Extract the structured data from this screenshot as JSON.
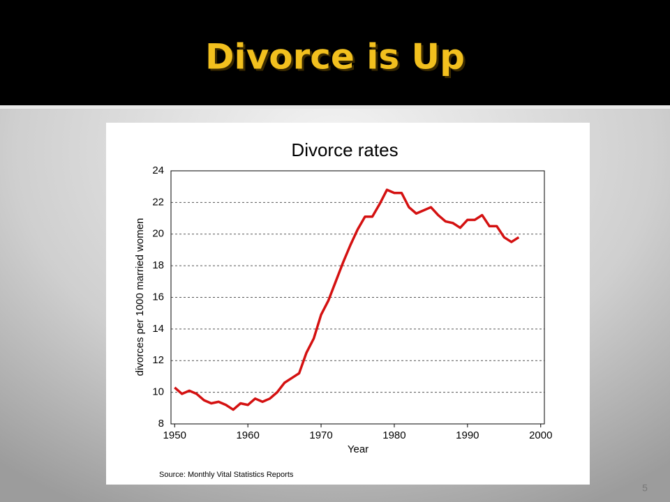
{
  "slide": {
    "title": "Divorce is Up",
    "page_number": "5"
  },
  "chart_data": {
    "type": "line",
    "title": "Divorce rates",
    "x_label": "Year",
    "y_label": "divorces per 1000 married women",
    "source": "Source: Monthly Vital Statistics Reports",
    "x": [
      1950,
      1951,
      1952,
      1953,
      1954,
      1955,
      1956,
      1957,
      1958,
      1959,
      1960,
      1961,
      1962,
      1963,
      1964,
      1965,
      1966,
      1967,
      1968,
      1969,
      1970,
      1971,
      1972,
      1973,
      1974,
      1975,
      1976,
      1977,
      1978,
      1979,
      1980,
      1981,
      1982,
      1983,
      1984,
      1985,
      1986,
      1987,
      1988,
      1989,
      1990,
      1991,
      1992,
      1993,
      1994,
      1995,
      1996,
      1997
    ],
    "values": [
      10.3,
      9.9,
      10.1,
      9.9,
      9.5,
      9.3,
      9.4,
      9.2,
      8.9,
      9.3,
      9.2,
      9.6,
      9.4,
      9.6,
      10.0,
      10.6,
      10.9,
      11.2,
      12.5,
      13.4,
      14.9,
      15.8,
      17.0,
      18.2,
      19.3,
      20.3,
      21.1,
      21.1,
      21.9,
      22.8,
      22.6,
      22.6,
      21.7,
      21.3,
      21.5,
      21.7,
      21.2,
      20.8,
      20.7,
      20.4,
      20.9,
      20.9,
      21.2,
      20.5,
      20.5,
      19.8,
      19.5,
      19.8
    ],
    "color": "#d41111",
    "xlim": [
      1949.5,
      2000.5
    ],
    "xticks": [
      1950,
      1960,
      1970,
      1980,
      1990,
      2000
    ],
    "ylim": [
      8,
      24
    ],
    "yticks": [
      8,
      10,
      12,
      14,
      16,
      18,
      20,
      22,
      24
    ],
    "grid": true
  }
}
